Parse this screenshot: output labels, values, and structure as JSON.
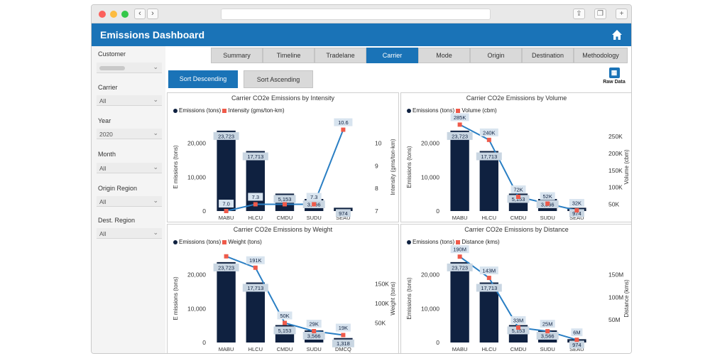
{
  "header": {
    "title": "Emissions Dashboard"
  },
  "sidebar": {
    "filters": [
      {
        "label": "Customer",
        "value": ""
      },
      {
        "label": "Carrier",
        "value": "All"
      },
      {
        "label": "Year",
        "value": "2020"
      },
      {
        "label": "Month",
        "value": "All"
      },
      {
        "label": "Origin Region",
        "value": "All"
      },
      {
        "label": "Dest. Region",
        "value": "All"
      }
    ]
  },
  "tabs": [
    "Summary",
    "Timeline",
    "Tradelane",
    "Carrier",
    "Mode",
    "Origin",
    "Destination",
    "Methodology"
  ],
  "active_tab": "Carrier",
  "sort": {
    "descending": "Sort Descending",
    "ascending": "Sort Ascending"
  },
  "raw_data_label": "Raw Data",
  "colors": {
    "brand": "#1a73b7",
    "bar": "#0f2140",
    "line": "#2a7fc4",
    "marker": "#ef5a4a"
  },
  "chart_data": [
    {
      "type": "bar",
      "title": "Carrier CO2e Emissions by Intensity",
      "ylabel": "E missions (tons)",
      "y2label": "Intensity (gms/ton-km)",
      "categories": [
        "MABU",
        "HLCU",
        "CMDU",
        "SUDU",
        "SEAU"
      ],
      "y_ticks": [
        "0",
        "10,000",
        "20,000"
      ],
      "y2_ticks": [
        "7",
        "8",
        "9",
        "10"
      ],
      "series": [
        {
          "name": "Emissions (tons)",
          "values": [
            23723,
            17713,
            5153,
            3566,
            974
          ],
          "labels": [
            "23,723",
            "17,713",
            "5,153",
            "3,566",
            "974"
          ]
        },
        {
          "name": "Intensity (gms/ton-km)",
          "values": [
            7.0,
            7.3,
            7.3,
            7.3,
            10.6
          ],
          "labels": [
            "7.0",
            "7.3",
            "",
            "7.3",
            "10.6"
          ]
        }
      ],
      "ylim": [
        0,
        26000
      ],
      "y2lim": [
        7,
        10.9
      ]
    },
    {
      "type": "bar",
      "title": "Carrier CO2e Emissions by Volume",
      "ylabel": "Emissions (tons)",
      "y2label": "Volume (cbm)",
      "categories": [
        "MABU",
        "HLCU",
        "CMDU",
        "SUDU",
        "SEAU"
      ],
      "y_ticks": [
        "0",
        "10,000",
        "20,000"
      ],
      "y2_ticks": [
        "50K",
        "100K",
        "150K",
        "200K",
        "250K"
      ],
      "series": [
        {
          "name": "Emissions (tons)",
          "values": [
            23723,
            17713,
            5153,
            3566,
            974
          ],
          "labels": [
            "23,723",
            "17,713",
            "5,153",
            "3,566",
            "974"
          ]
        },
        {
          "name": "Volume (cbm)",
          "values": [
            285000,
            240000,
            72000,
            52000,
            32000
          ],
          "labels": [
            "285K",
            "240K",
            "72K",
            "52K",
            "32K"
          ]
        }
      ],
      "ylim": [
        0,
        26000
      ],
      "y2lim": [
        30000,
        290000
      ]
    },
    {
      "type": "bar",
      "title": "Carrier CO2e Emissions by Weight",
      "ylabel": "E missions (tons)",
      "y2label": "Weight (tons)",
      "categories": [
        "MABU",
        "HLCU",
        "CMDU",
        "SUDU",
        "DMCQ"
      ],
      "y_ticks": [
        "0",
        "10,000",
        "20,000"
      ],
      "y2_ticks": [
        "50K",
        "100K",
        "150K"
      ],
      "series": [
        {
          "name": "Emissions (tons)",
          "values": [
            23723,
            17713,
            5153,
            3566,
            1318
          ],
          "labels": [
            "23,723",
            "17,713",
            "5,153",
            "3,566",
            "1,318"
          ]
        },
        {
          "name": "Weight (tons)",
          "values": [
            220000,
            191000,
            50000,
            29000,
            19000
          ],
          "labels": [
            "",
            "191K",
            "50K",
            "29K",
            "19K"
          ]
        }
      ],
      "ylim": [
        0,
        26000
      ],
      "y2lim": [
        0,
        225000
      ]
    },
    {
      "type": "bar",
      "title": "Carrier CO2e Emissions by Distance",
      "ylabel": "Emissions (tons)",
      "y2label": "Distance (kms)",
      "categories": [
        "MABU",
        "HLCU",
        "CMDU",
        "SUDU",
        "SEAU"
      ],
      "y_ticks": [
        "0",
        "10,000",
        "20,000"
      ],
      "y2_ticks": [
        "50M",
        "100M",
        "150M"
      ],
      "series": [
        {
          "name": "Emissions (tons)",
          "values": [
            23723,
            17713,
            5153,
            3566,
            974
          ],
          "labels": [
            "23,723",
            "17,713",
            "5,153",
            "3,566",
            "974"
          ]
        },
        {
          "name": "Distance (kms)",
          "values": [
            190000000,
            143000000,
            33000000,
            25000000,
            6000000
          ],
          "labels": [
            "190M",
            "143M",
            "33M",
            "25M",
            "6M"
          ]
        }
      ],
      "ylim": [
        0,
        26000
      ],
      "y2lim": [
        0,
        195000000
      ]
    }
  ]
}
